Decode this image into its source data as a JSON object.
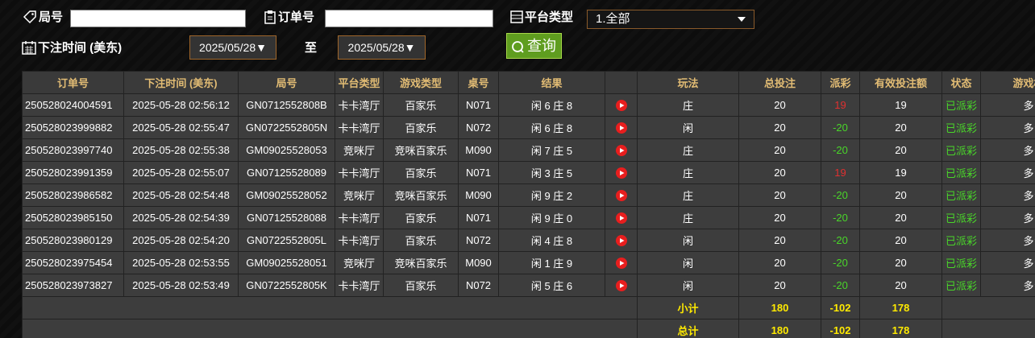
{
  "filters": {
    "round_label": "局号",
    "order_label": "订单号",
    "platform_label": "平台类型",
    "platform_value": "1.全部",
    "time_label": "下注时间 (美东)",
    "date_from": "2025/05/28▼",
    "to_label": "至",
    "date_to": "2025/05/28▼",
    "search_button": "查询"
  },
  "table": {
    "headers": [
      "订单号",
      "下注时间 (美东)",
      "局号",
      "平台类型",
      "游戏类型",
      "桌号",
      "结果",
      "玩法",
      "总投注",
      "派彩",
      "有效投注额",
      "状态",
      "游戏模式"
    ],
    "rows": [
      [
        "250528024004591",
        "2025-05-28 02:56:12",
        "GN0712552808B",
        "卡卡湾厅",
        "百家乐",
        "N071",
        "闲 6 庄 8",
        "庄",
        20,
        19,
        19,
        "已派彩",
        "多台"
      ],
      [
        "250528023999882",
        "2025-05-28 02:55:47",
        "GN0722552805N",
        "卡卡湾厅",
        "百家乐",
        "N072",
        "闲 6 庄 8",
        "闲",
        20,
        -20,
        20,
        "已派彩",
        "多台"
      ],
      [
        "250528023997740",
        "2025-05-28 02:55:38",
        "GM09025528053",
        "竞咪厅",
        "竞咪百家乐",
        "M090",
        "闲 7 庄 5",
        "庄",
        20,
        -20,
        20,
        "已派彩",
        "多台"
      ],
      [
        "250528023991359",
        "2025-05-28 02:55:07",
        "GN07125528089",
        "卡卡湾厅",
        "百家乐",
        "N071",
        "闲 3 庄 5",
        "庄",
        20,
        19,
        19,
        "已派彩",
        "多台"
      ],
      [
        "250528023986582",
        "2025-05-28 02:54:48",
        "GM09025528052",
        "竞咪厅",
        "竞咪百家乐",
        "M090",
        "闲 9 庄 2",
        "庄",
        20,
        -20,
        20,
        "已派彩",
        "多台"
      ],
      [
        "250528023985150",
        "2025-05-28 02:54:39",
        "GN07125528088",
        "卡卡湾厅",
        "百家乐",
        "N071",
        "闲 9 庄 0",
        "庄",
        20,
        -20,
        20,
        "已派彩",
        "多台"
      ],
      [
        "250528023980129",
        "2025-05-28 02:54:20",
        "GN0722552805L",
        "卡卡湾厅",
        "百家乐",
        "N072",
        "闲 4 庄 8",
        "闲",
        20,
        -20,
        20,
        "已派彩",
        "多台"
      ],
      [
        "250528023975454",
        "2025-05-28 02:53:55",
        "GM09025528051",
        "竞咪厅",
        "竞咪百家乐",
        "M090",
        "闲 1 庄 9",
        "闲",
        20,
        -20,
        20,
        "已派彩",
        "多台"
      ],
      [
        "250528023973827",
        "2025-05-28 02:53:49",
        "GN0722552805K",
        "卡卡湾厅",
        "百家乐",
        "N072",
        "闲 5 庄 6",
        "闲",
        20,
        -20,
        20,
        "已派彩",
        "多台"
      ]
    ],
    "summary": [
      {
        "label": "小计",
        "total_bet": 180,
        "payout": -102,
        "valid_bet": 178
      },
      {
        "label": "总计",
        "total_bet": 180,
        "payout": -102,
        "valid_bet": 178
      }
    ]
  }
}
